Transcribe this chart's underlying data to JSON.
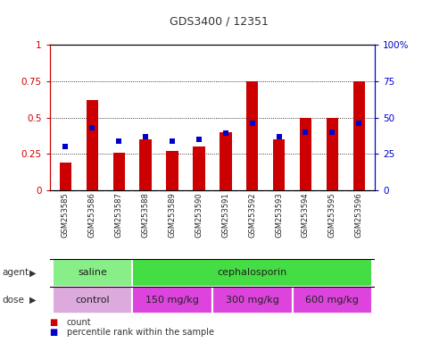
{
  "title": "GDS3400 / 12351",
  "samples": [
    "GSM253585",
    "GSM253586",
    "GSM253587",
    "GSM253588",
    "GSM253589",
    "GSM253590",
    "GSM253591",
    "GSM253592",
    "GSM253593",
    "GSM253594",
    "GSM253595",
    "GSM253596"
  ],
  "count_values": [
    0.19,
    0.62,
    0.26,
    0.35,
    0.27,
    0.3,
    0.4,
    0.75,
    0.35,
    0.5,
    0.5,
    0.75
  ],
  "percentile_values": [
    0.3,
    0.43,
    0.34,
    0.37,
    0.34,
    0.35,
    0.39,
    0.46,
    0.37,
    0.4,
    0.4,
    0.46
  ],
  "bar_color": "#cc0000",
  "dot_color": "#0000cc",
  "ylim": [
    0,
    1.0
  ],
  "yticks": [
    0,
    0.25,
    0.5,
    0.75,
    1.0
  ],
  "ytick_labels": [
    "0",
    "0.25",
    "0.5",
    "0.75",
    "1"
  ],
  "right_yticks": [
    0,
    25,
    50,
    75,
    100
  ],
  "right_ytick_labels": [
    "0",
    "25",
    "50",
    "75",
    "100%"
  ],
  "agent_groups": [
    {
      "label": "saline",
      "start": 0,
      "end": 3,
      "color": "#88ee88"
    },
    {
      "label": "cephalosporin",
      "start": 3,
      "end": 12,
      "color": "#44dd44"
    }
  ],
  "dose_groups": [
    {
      "label": "control",
      "start": 0,
      "end": 3,
      "color": "#ddaadd"
    },
    {
      "label": "150 mg/kg",
      "start": 3,
      "end": 6,
      "color": "#dd44dd"
    },
    {
      "label": "300 mg/kg",
      "start": 6,
      "end": 9,
      "color": "#dd44dd"
    },
    {
      "label": "600 mg/kg",
      "start": 9,
      "end": 12,
      "color": "#dd44dd"
    }
  ],
  "legend_count_label": "count",
  "legend_pct_label": "percentile rank within the sample",
  "bar_width": 0.45,
  "left_axis_color": "#cc0000",
  "right_axis_color": "#0000cc",
  "background_color": "#ffffff",
  "plot_bg_color": "#ffffff",
  "tick_area_color": "#cccccc"
}
